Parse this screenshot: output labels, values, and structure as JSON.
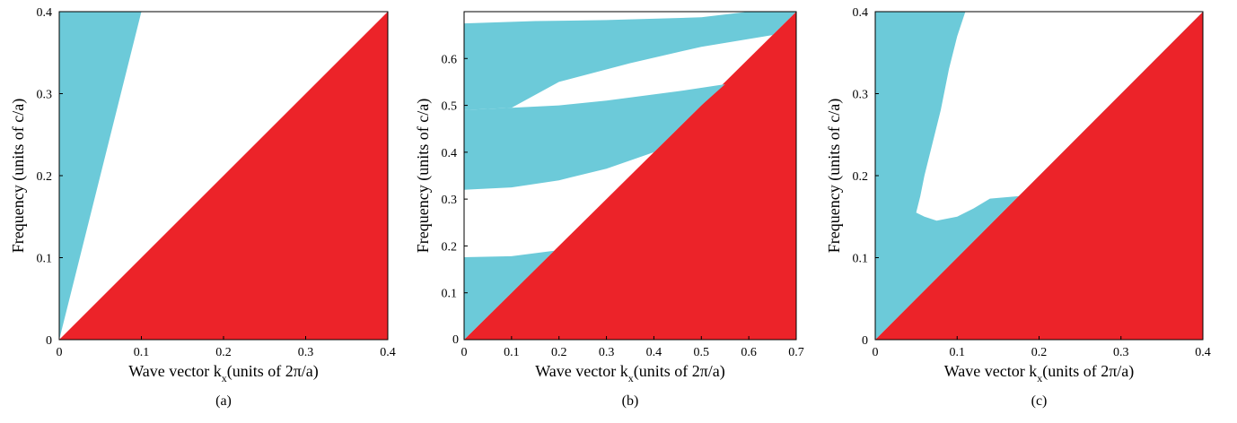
{
  "colors": {
    "light_cone": "#ec2329",
    "band": "#6ccad9",
    "gap": "#ffffff"
  },
  "chart_data": [
    {
      "type": "area",
      "caption": "(a)",
      "xlabel_main": "Wave vector k",
      "xlabel_sub": "x",
      "xlabel_tail": "(units of 2π/a)",
      "ylabel": "Frequency (units of c/a)",
      "xlim": [
        0,
        0.4
      ],
      "ylim": [
        0,
        0.4
      ],
      "xticks": [
        "0",
        "0.1",
        "0.2",
        "0.3",
        "0.4"
      ],
      "xtick_values": [
        0,
        0.1,
        0.2,
        0.3,
        0.4
      ],
      "yticks": [
        "0",
        "0.1",
        "0.2",
        "0.3",
        "0.4"
      ],
      "ytick_values": [
        0,
        0.1,
        0.2,
        0.3,
        0.4
      ],
      "regions": [
        {
          "name": "light-cone",
          "color": "#ec2329",
          "points": [
            [
              0,
              0
            ],
            [
              0.4,
              0.4
            ],
            [
              0.4,
              0
            ]
          ]
        },
        {
          "name": "band",
          "color": "#6ccad9",
          "points": [
            [
              0,
              0
            ],
            [
              0.1,
              0.4
            ],
            [
              0,
              0.4
            ]
          ]
        }
      ]
    },
    {
      "type": "area",
      "caption": "(b)",
      "xlabel_main": "Wave vector k",
      "xlabel_sub": "x",
      "xlabel_tail": "(units of 2π/a)",
      "ylabel": "Frequency (units of c/a)",
      "xlim": [
        0,
        0.7
      ],
      "ylim": [
        0,
        0.7
      ],
      "xticks": [
        "0",
        "0.1",
        "0.2",
        "0.3",
        "0.4",
        "0.5",
        "0.6",
        "0.7"
      ],
      "xtick_values": [
        0,
        0.1,
        0.2,
        0.3,
        0.4,
        0.5,
        0.6,
        0.7
      ],
      "yticks": [
        "0.1",
        "0.2",
        "0.3",
        "0.4",
        "0.5",
        "0.6"
      ],
      "ytick_values": [
        0.1,
        0.2,
        0.3,
        0.4,
        0.5,
        0.6
      ],
      "regions": [
        {
          "name": "light-cone",
          "color": "#ec2329",
          "points": [
            [
              0,
              0
            ],
            [
              0.7,
              0.7
            ],
            [
              0.7,
              0
            ]
          ]
        },
        {
          "name": "band-1",
          "color": "#6ccad9",
          "points": [
            [
              0,
              0
            ],
            [
              0.19,
              0.19
            ],
            [
              0.1,
              0.178
            ],
            [
              0,
              0.176
            ]
          ]
        },
        {
          "name": "band-2",
          "color": "#6ccad9",
          "points": [
            [
              0,
              0.32
            ],
            [
              0.1,
              0.325
            ],
            [
              0.2,
              0.34
            ],
            [
              0.3,
              0.365
            ],
            [
              0.4,
              0.4
            ],
            [
              0.5,
              0.5
            ],
            [
              0.55,
              0.545
            ],
            [
              0.45,
              0.53
            ],
            [
              0.3,
              0.51
            ],
            [
              0.2,
              0.5
            ],
            [
              0.1,
              0.495
            ],
            [
              0,
              0.49
            ]
          ]
        },
        {
          "name": "band-3",
          "color": "#6ccad9",
          "points": [
            [
              0,
              0.49
            ],
            [
              0.1,
              0.495
            ],
            [
              0.2,
              0.55
            ],
            [
              0.35,
              0.59
            ],
            [
              0.5,
              0.625
            ],
            [
              0.65,
              0.65
            ],
            [
              0.7,
              0.7
            ],
            [
              0.6,
              0.7
            ],
            [
              0.5,
              0.688
            ],
            [
              0.3,
              0.682
            ],
            [
              0.15,
              0.68
            ],
            [
              0,
              0.675
            ]
          ]
        }
      ]
    },
    {
      "type": "area",
      "caption": "(c)",
      "xlabel_main": "Wave vector k",
      "xlabel_sub": "x",
      "xlabel_tail": "(units of 2π/a)",
      "ylabel": "Frequency (units of c/a)",
      "xlim": [
        0,
        0.4
      ],
      "ylim": [
        0,
        0.4
      ],
      "xticks": [
        "0",
        "0.1",
        "0.2",
        "0.3",
        "0.4"
      ],
      "xtick_values": [
        0,
        0.1,
        0.2,
        0.3,
        0.4
      ],
      "yticks": [
        "0",
        "0.1",
        "0.2",
        "0.3",
        "0.4"
      ],
      "ytick_values": [
        0,
        0.1,
        0.2,
        0.3,
        0.4
      ],
      "regions": [
        {
          "name": "light-cone",
          "color": "#ec2329",
          "points": [
            [
              0,
              0
            ],
            [
              0.4,
              0.4
            ],
            [
              0.4,
              0
            ]
          ]
        },
        {
          "name": "band",
          "color": "#6ccad9",
          "points": [
            [
              0,
              0
            ],
            [
              0.4,
              0.4
            ],
            [
              0,
              0.4
            ]
          ]
        },
        {
          "name": "gap",
          "color": "#ffffff",
          "points": [
            [
              0.11,
              0.4
            ],
            [
              0.4,
              0.4
            ],
            [
              0.175,
              0.175
            ],
            [
              0.14,
              0.172
            ],
            [
              0.12,
              0.16
            ],
            [
              0.1,
              0.15
            ],
            [
              0.075,
              0.145
            ],
            [
              0.06,
              0.15
            ],
            [
              0.05,
              0.155
            ],
            [
              0.055,
              0.175
            ],
            [
              0.06,
              0.2
            ],
            [
              0.07,
              0.24
            ],
            [
              0.08,
              0.28
            ],
            [
              0.09,
              0.33
            ],
            [
              0.1,
              0.37
            ]
          ]
        }
      ]
    }
  ]
}
